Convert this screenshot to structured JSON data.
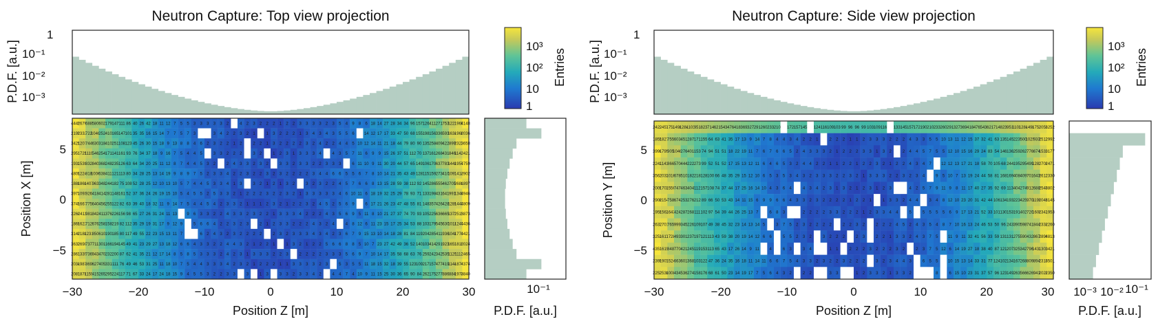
{
  "colors": {
    "hist_fill": "#b5cec3",
    "frame": "#222222",
    "empty_cell": "#ffffff"
  },
  "chart_data": [
    {
      "type": "heatmap",
      "title": "Neutron Capture: Top view projection",
      "xlabel": "Position Z [m]",
      "ylabel": "Position X [m]",
      "xlim": [
        -30,
        30
      ],
      "ylim": [
        -8,
        8
      ],
      "x_ticks": [
        "−30",
        "−20",
        "−10",
        "0",
        "10",
        "20",
        "30"
      ],
      "y_ticks": [
        "−5",
        "0",
        "5"
      ],
      "colorbar": {
        "label": "Entries",
        "ticks": [
          "1",
          "10",
          "10²",
          "10³"
        ],
        "scale": "log",
        "range": [
          1,
          6000
        ]
      },
      "top_histogram": {
        "ylabel": "P.D.F. [a.u.]",
        "scale": "log",
        "ticks": [
          "10⁻³",
          "10⁻²",
          "10⁻¹",
          "1"
        ],
        "range": [
          0.0003,
          1.5
        ],
        "bins": 60,
        "edge_value": 0.12,
        "center_value": 0.0004
      },
      "side_histogram": {
        "xlabel": "P.D.F. [a.u.]",
        "ticks": [
          "10⁻¹"
        ],
        "scale": "log"
      },
      "grid": {
        "nx": 60,
        "ny": 16
      },
      "grid_visible": false,
      "legend": "none"
    },
    {
      "type": "heatmap",
      "title": "Neutron Capture: Side view projection",
      "xlabel": "Position Z [m]",
      "ylabel": "Position Y [m]",
      "xlim": [
        -30,
        30
      ],
      "ylim": [
        -8,
        8
      ],
      "x_ticks": [
        "−30",
        "−20",
        "−10",
        "0",
        "10",
        "20",
        "30"
      ],
      "y_ticks": [
        "−5",
        "0",
        "5"
      ],
      "colorbar": {
        "label": "Entries",
        "ticks": [
          "1",
          "10",
          "10²",
          "10³"
        ],
        "scale": "log",
        "range": [
          1,
          6000
        ]
      },
      "top_histogram": {
        "ylabel": "P.D.F. [a.u.]",
        "scale": "log",
        "ticks": [
          "10⁻³",
          "10⁻²",
          "10⁻¹",
          "1"
        ],
        "range": [
          0.0003,
          1.5
        ],
        "bins": 60,
        "edge_value": 0.12,
        "center_value": 0.0004
      },
      "side_histogram": {
        "xlabel": "P.D.F. [a.u.]",
        "ticks": [
          "10⁻³",
          "10⁻²",
          "10⁻¹"
        ],
        "scale": "log"
      },
      "grid": {
        "nx": 60,
        "ny": 13
      },
      "grid_visible": false,
      "legend": "none"
    }
  ]
}
